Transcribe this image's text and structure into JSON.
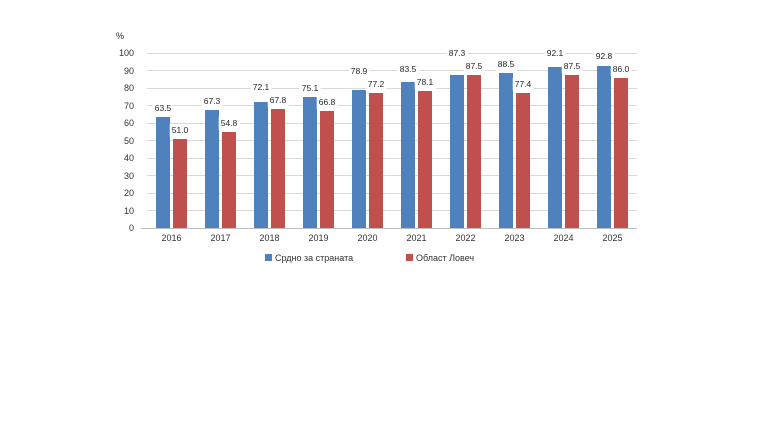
{
  "chart_data": {
    "type": "bar",
    "title": "",
    "unit_label": "%",
    "xlabel": "",
    "ylabel": "%",
    "categories": [
      "2016",
      "2017",
      "2018",
      "2019",
      "2020",
      "2021",
      "2022",
      "2023",
      "2024",
      "2025"
    ],
    "series": [
      {
        "name": "Срдно за страната",
        "color": "#4F81BD",
        "values": [
          63.5,
          67.3,
          72.1,
          75.1,
          78.9,
          83.5,
          87.3,
          88.5,
          92.1,
          92.8
        ]
      },
      {
        "name": "Област Ловеч",
        "color": "#C0504D",
        "values": [
          51.0,
          54.8,
          67.8,
          66.8,
          77.2,
          78.1,
          87.5,
          77.4,
          87.5,
          86.0
        ]
      }
    ],
    "ylim": [
      0,
      100
    ],
    "ytick_step": 10,
    "grid": true,
    "legend_position": "bottom",
    "data_labels": "one_decimal"
  },
  "colors": {
    "grid": "#D9D9D9",
    "axis": "#BFBFBF",
    "text": "#333333",
    "label_text": "#262626",
    "background": "#FFFFFF"
  }
}
